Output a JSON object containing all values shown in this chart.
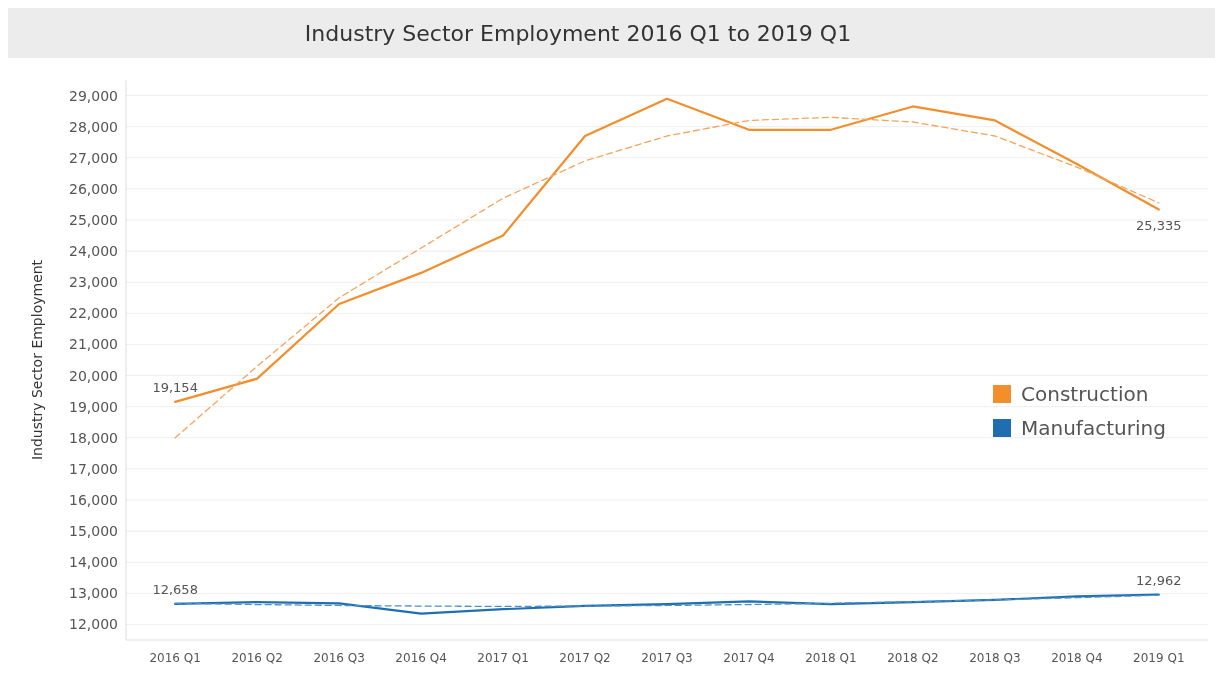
{
  "chart_data": {
    "type": "line",
    "title": "Industry Sector Employment 2016 Q1 to 2019 Q1",
    "ylabel": "Industry Sector Employment",
    "categories": [
      "2016 Q1",
      "2016 Q2",
      "2016 Q3",
      "2016 Q4",
      "2017 Q1",
      "2017 Q2",
      "2017 Q3",
      "2017 Q4",
      "2018 Q1",
      "2018 Q2",
      "2018 Q3",
      "2018 Q4",
      "2019 Q1"
    ],
    "series": [
      {
        "name": "Construction",
        "color": "#f28e2b",
        "values": [
          19154,
          19900,
          22300,
          23300,
          24500,
          27700,
          28900,
          27900,
          27900,
          28650,
          28200,
          26800,
          25335
        ],
        "value_labels": [
          "19,154",
          null,
          null,
          null,
          null,
          null,
          null,
          null,
          null,
          null,
          null,
          null,
          "25,335"
        ]
      },
      {
        "name": "Manufacturing",
        "color": "#1f6fb0",
        "values": [
          12658,
          12720,
          12680,
          12350,
          12490,
          12600,
          12650,
          12740,
          12650,
          12720,
          12790,
          12900,
          12962
        ],
        "value_labels": [
          "12,658",
          null,
          null,
          null,
          null,
          null,
          null,
          null,
          null,
          null,
          null,
          null,
          "12,962"
        ]
      },
      {
        "type": "line",
        "color": "#f5a45c",
        "line_style": "dashed",
        "values": [
          18000,
          20300,
          22500,
          24100,
          25700,
          26900,
          27700,
          28200,
          28300,
          28150,
          27700,
          26700,
          25550
        ]
      },
      {
        "type": "line",
        "color": "#4f8fc4",
        "line_style": "dashed",
        "values": [
          12680,
          12640,
          12610,
          12590,
          12580,
          12590,
          12610,
          12640,
          12680,
          12730,
          12790,
          12860,
          12940
        ]
      }
    ],
    "ylim": [
      11500,
      29500
    ],
    "yticks": [
      {
        "value": 12000,
        "label": "12,000"
      },
      {
        "value": 13000,
        "label": "13,000"
      },
      {
        "value": 14000,
        "label": "14,000"
      },
      {
        "value": 15000,
        "label": "15,000"
      },
      {
        "value": 16000,
        "label": "16,000"
      },
      {
        "value": 17000,
        "label": "17,000"
      },
      {
        "value": 18000,
        "label": "18,000"
      },
      {
        "value": 19000,
        "label": "19,000"
      },
      {
        "value": 20000,
        "label": "20,000"
      },
      {
        "value": 21000,
        "label": "21,000"
      },
      {
        "value": 22000,
        "label": "22,000"
      },
      {
        "value": 23000,
        "label": "23,000"
      },
      {
        "value": 24000,
        "label": "24,000"
      },
      {
        "value": 25000,
        "label": "25,000"
      },
      {
        "value": 26000,
        "label": "26,000"
      },
      {
        "value": 27000,
        "label": "27,000"
      },
      {
        "value": 28000,
        "label": "28,000"
      },
      {
        "value": 29000,
        "label": "29,000"
      }
    ],
    "grid": "y",
    "legend": "right",
    "line_style": "solid"
  }
}
